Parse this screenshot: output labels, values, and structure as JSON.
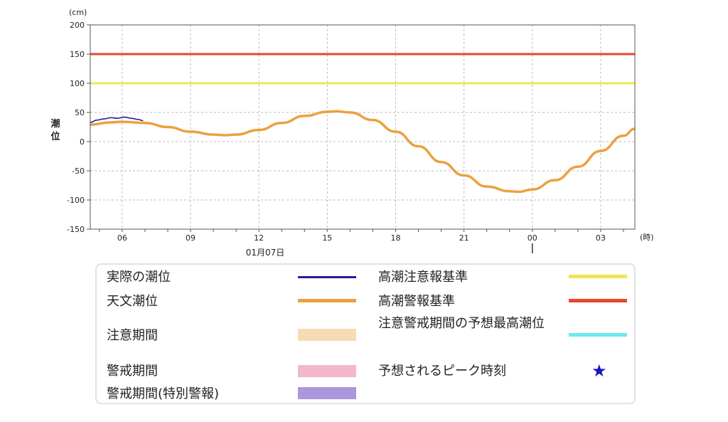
{
  "chart_data": {
    "type": "line",
    "y_unit": "(cm)",
    "x_unit": "(時)",
    "ylabel": "潮位",
    "date_label": "01月07日",
    "ylim": [
      -150,
      200
    ],
    "y_ticks": [
      200,
      150,
      100,
      50,
      0,
      -50,
      -100,
      -150
    ],
    "y_tick_labels": [
      "200",
      "150",
      "100",
      "50",
      "0",
      "-50",
      "-100",
      "-150"
    ],
    "x_range_hours": [
      4.6,
      28.5
    ],
    "x_ticks": [
      {
        "hour": 6,
        "label": "06"
      },
      {
        "hour": 9,
        "label": "09"
      },
      {
        "hour": 12,
        "label": "12"
      },
      {
        "hour": 15,
        "label": "15"
      },
      {
        "hour": 18,
        "label": "18"
      },
      {
        "hour": 21,
        "label": "21"
      },
      {
        "hour": 24,
        "label": "00"
      },
      {
        "hour": 27,
        "label": "03"
      }
    ],
    "grid": true,
    "thresholds": [
      {
        "name": "高潮警報基準",
        "value": 150,
        "color": "#e8462c"
      },
      {
        "name": "高潮注意報基準",
        "value": 100,
        "color": "#f2e455"
      }
    ],
    "series": [
      {
        "name": "天文潮位",
        "color": "#eba13f",
        "points": [
          {
            "hour": 4.6,
            "value": 29
          },
          {
            "hour": 5.5,
            "value": 33
          },
          {
            "hour": 6.0,
            "value": 34
          },
          {
            "hour": 7.0,
            "value": 32
          },
          {
            "hour": 8.0,
            "value": 25
          },
          {
            "hour": 9.0,
            "value": 17
          },
          {
            "hour": 10.0,
            "value": 12
          },
          {
            "hour": 10.5,
            "value": 11
          },
          {
            "hour": 11.0,
            "value": 12
          },
          {
            "hour": 12.0,
            "value": 20
          },
          {
            "hour": 13.0,
            "value": 32
          },
          {
            "hour": 14.0,
            "value": 44
          },
          {
            "hour": 15.0,
            "value": 51
          },
          {
            "hour": 15.4,
            "value": 52
          },
          {
            "hour": 16.0,
            "value": 50
          },
          {
            "hour": 17.0,
            "value": 37
          },
          {
            "hour": 18.0,
            "value": 17
          },
          {
            "hour": 19.0,
            "value": -8
          },
          {
            "hour": 20.0,
            "value": -35
          },
          {
            "hour": 21.0,
            "value": -58
          },
          {
            "hour": 22.0,
            "value": -77
          },
          {
            "hour": 23.0,
            "value": -85
          },
          {
            "hour": 23.4,
            "value": -86
          },
          {
            "hour": 24.0,
            "value": -82
          },
          {
            "hour": 25.0,
            "value": -66
          },
          {
            "hour": 26.0,
            "value": -43
          },
          {
            "hour": 27.0,
            "value": -16
          },
          {
            "hour": 28.0,
            "value": 10
          },
          {
            "hour": 28.5,
            "value": 22
          }
        ]
      },
      {
        "name": "実際の潮位",
        "color": "#2a1a9a",
        "points": [
          {
            "hour": 4.6,
            "value": 33
          },
          {
            "hour": 4.9,
            "value": 37
          },
          {
            "hour": 5.2,
            "value": 39
          },
          {
            "hour": 5.5,
            "value": 41
          },
          {
            "hour": 5.8,
            "value": 40
          },
          {
            "hour": 6.1,
            "value": 42
          },
          {
            "hour": 6.4,
            "value": 40
          },
          {
            "hour": 6.7,
            "value": 38
          },
          {
            "hour": 6.9,
            "value": 36
          }
        ]
      }
    ]
  },
  "legend": {
    "left": [
      {
        "label": "実際の潮位",
        "kind": "line",
        "color": "#2a1a9a"
      },
      {
        "label": "天文潮位",
        "kind": "line",
        "color": "#eba13f"
      },
      {
        "label": "注意期間",
        "kind": "box",
        "color": "#f7dbb4"
      },
      {
        "label": "警戒期間",
        "kind": "box",
        "color": "#f3b8cc"
      },
      {
        "label": "警戒期間(特別警報)",
        "kind": "box",
        "color": "#ab97dd"
      }
    ],
    "right": [
      {
        "label": "高潮注意報基準",
        "kind": "line",
        "color": "#f2e455"
      },
      {
        "label": "高潮警報基準",
        "kind": "line",
        "color": "#e8462c"
      },
      {
        "label": "注意警戒期間の予想最高潮位",
        "kind": "line",
        "color": "#6fe7f0"
      },
      {
        "label": "予想されるピーク時刻",
        "kind": "star",
        "color": "#1515c4",
        "symbol": "★"
      }
    ]
  }
}
